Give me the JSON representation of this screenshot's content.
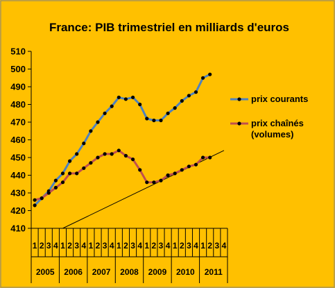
{
  "chart_data": {
    "type": "line",
    "title": "France: PIB trimestriel en milliards d'euros",
    "ylim": [
      410,
      510
    ],
    "yticks": [
      410,
      420,
      430,
      440,
      450,
      460,
      470,
      480,
      490,
      500,
      510
    ],
    "categories": [
      "2005 Q1",
      "2005 Q2",
      "2005 Q3",
      "2005 Q4",
      "2006 Q1",
      "2006 Q2",
      "2006 Q3",
      "2006 Q4",
      "2007 Q1",
      "2007 Q2",
      "2007 Q3",
      "2007 Q4",
      "2008 Q1",
      "2008 Q2",
      "2008 Q3",
      "2008 Q4",
      "2009 Q1",
      "2009 Q2",
      "2009 Q3",
      "2009 Q4",
      "2010 Q1",
      "2010 Q2",
      "2010 Q3",
      "2010 Q4",
      "2011 Q1",
      "2011 Q2",
      "2011 Q3",
      "2011 Q4"
    ],
    "quarter_labels": [
      "1",
      "2",
      "3",
      "4",
      "1",
      "2",
      "3",
      "4",
      "1",
      "2",
      "3",
      "4",
      "1",
      "2",
      "3",
      "4",
      "1",
      "2",
      "3",
      "4",
      "1",
      "2",
      "3",
      "4",
      "1",
      "2",
      "3",
      "4"
    ],
    "year_labels": [
      "2005",
      "2006",
      "2007",
      "2008",
      "2009",
      "2010",
      "2011"
    ],
    "series": [
      {
        "name": "prix courants",
        "color": "#4F81BD",
        "values": [
          423,
          427,
          431,
          437,
          441,
          448,
          452,
          458,
          465,
          470,
          475,
          479,
          484,
          483,
          484,
          480,
          472,
          471,
          471,
          475,
          478,
          482,
          485,
          487,
          495,
          497,
          null,
          null
        ]
      },
      {
        "name": "prix chaînés (volumes)",
        "color": "#C0504D",
        "values": [
          426,
          427,
          430,
          433,
          436,
          441,
          441,
          444,
          447,
          450,
          452,
          452,
          454,
          451,
          449,
          443,
          436,
          436,
          437,
          440,
          441,
          443,
          445,
          446,
          450,
          450,
          null,
          null
        ]
      }
    ],
    "trendline": {
      "from": [
        4,
        410
      ],
      "to": [
        27,
        454
      ],
      "color": "#000000"
    },
    "grid": false,
    "legend": "right",
    "background": "#FFC000"
  }
}
